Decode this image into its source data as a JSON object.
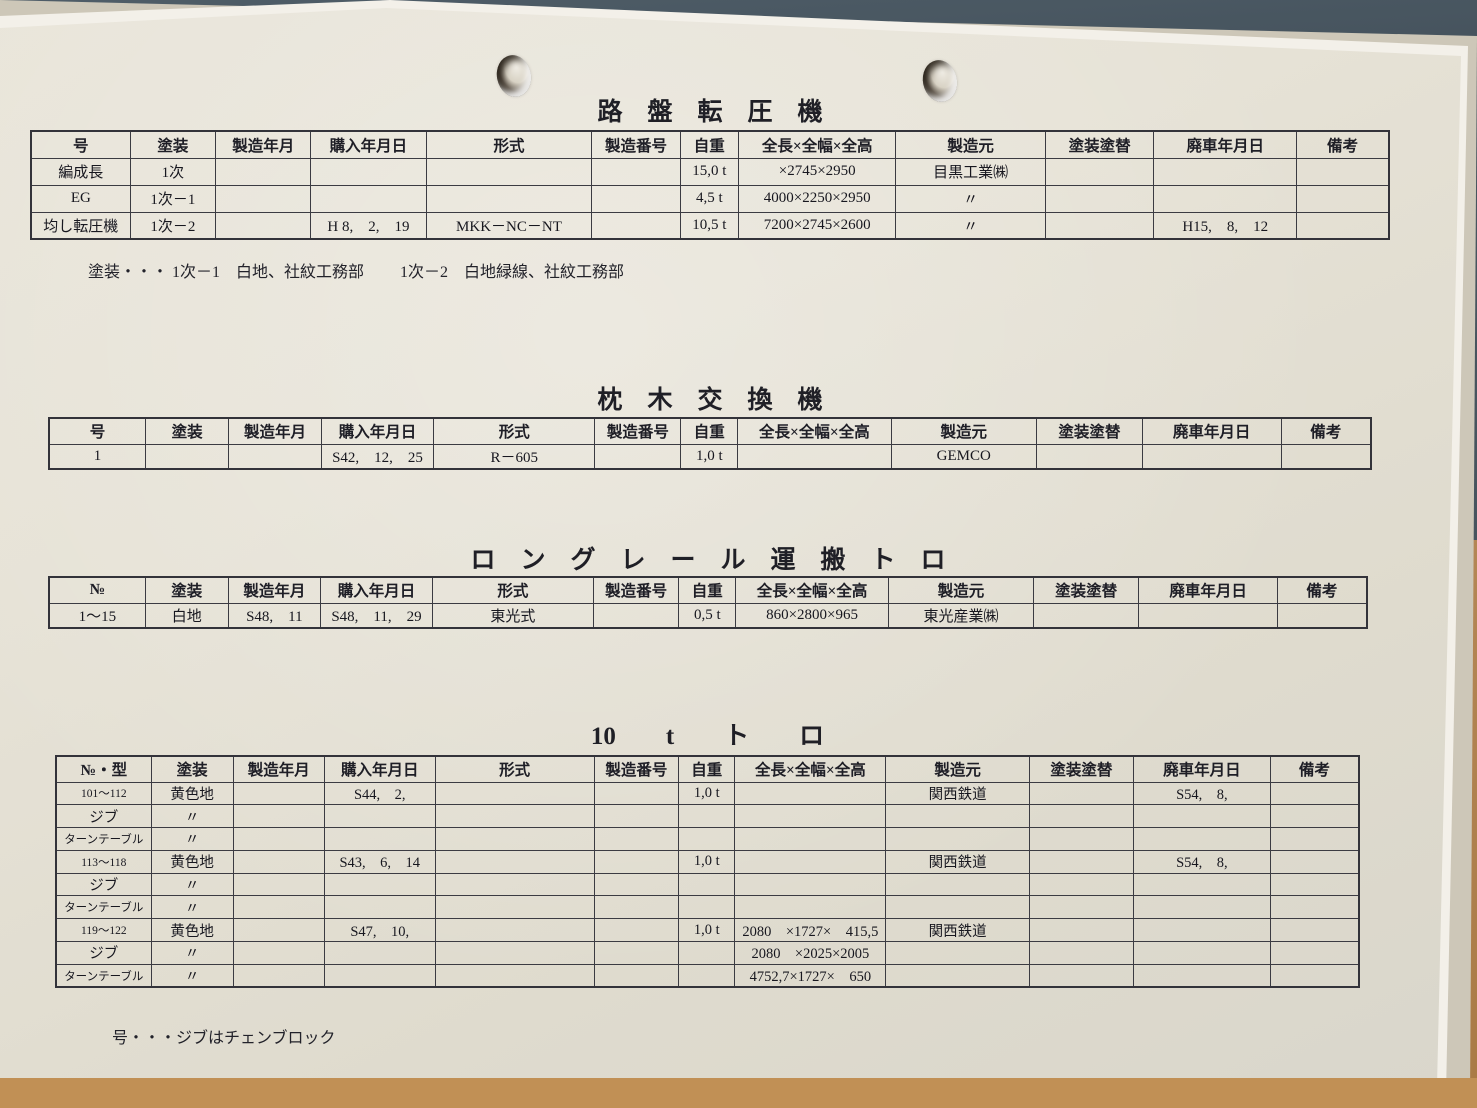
{
  "notes": {
    "paint_note": "塗装・・・ 1次－1　白地、社紋工務部　　 1次－2　白地緑線、社紋工務部",
    "jib_note": "号・・・ジブはチェンブロック"
  },
  "tables": [
    {
      "title": "路　盤　転　圧　機",
      "headers": [
        "号",
        "塗装",
        "製造年月",
        "購入年月日",
        "形式",
        "製造番号",
        "自重",
        "全長×全幅×全高",
        "製造元",
        "塗装塗替",
        "廃車年月日",
        "備考"
      ],
      "rows": [
        [
          "編成長",
          "1次",
          "",
          "",
          "",
          "",
          "15,0 t",
          "×2745×2950",
          "目黒工業㈱",
          "",
          "",
          ""
        ],
        [
          "EG",
          "1次－1",
          "",
          "",
          "",
          "",
          "4,5 t",
          "4000×2250×2950",
          "〃",
          "",
          "",
          ""
        ],
        [
          "均し転圧機",
          "1次－2",
          "",
          "H 8,　2,　19",
          "MKK－NC－NT",
          "",
          "10,5 t",
          "7200×2745×2600",
          "〃",
          "",
          "H15,　8,　12",
          ""
        ]
      ]
    },
    {
      "title": "枕　木　交　換　機",
      "headers": [
        "号",
        "塗装",
        "製造年月",
        "購入年月日",
        "形式",
        "製造番号",
        "自重",
        "全長×全幅×全高",
        "製造元",
        "塗装塗替",
        "廃車年月日",
        "備考"
      ],
      "rows": [
        [
          "1",
          "",
          "",
          "S42,　12,　25",
          "R－605",
          "",
          "1,0 t",
          "",
          "GEMCO",
          "",
          "",
          ""
        ]
      ]
    },
    {
      "title": "ロ　ン　グ　レ　ー　ル　運　搬　ト　ロ",
      "headers": [
        "№",
        "塗装",
        "製造年月",
        "購入年月日",
        "形式",
        "製造番号",
        "自重",
        "全長×全幅×全高",
        "製造元",
        "塗装塗替",
        "廃車年月日",
        "備考"
      ],
      "rows": [
        [
          "1〜15",
          "白地",
          "S48,　11",
          "S48,　11,　29",
          "東光式",
          "",
          "0,5 t",
          "860×2800×965",
          "東光産業㈱",
          "",
          "",
          ""
        ]
      ]
    },
    {
      "title": "10　　t　　ト　　ロ",
      "headers": [
        "№・型",
        "塗装",
        "製造年月",
        "購入年月日",
        "形式",
        "製造番号",
        "自重",
        "全長×全幅×全高",
        "製造元",
        "塗装塗替",
        "廃車年月日",
        "備考"
      ],
      "rows": [
        [
          "101〜112",
          "黄色地",
          "",
          "S44,　2,",
          "",
          "",
          "1,0 t",
          "",
          "関西鉄道",
          "",
          "S54,　8,",
          ""
        ],
        [
          "ジブ",
          "〃",
          "",
          "",
          "",
          "",
          "",
          "",
          "",
          "",
          "",
          ""
        ],
        [
          "ターンテーブル",
          "〃",
          "",
          "",
          "",
          "",
          "",
          "",
          "",
          "",
          "",
          ""
        ],
        [
          "113〜118",
          "黄色地",
          "",
          "S43,　6,　14",
          "",
          "",
          "1,0 t",
          "",
          "関西鉄道",
          "",
          "S54,　8,",
          ""
        ],
        [
          "ジブ",
          "〃",
          "",
          "",
          "",
          "",
          "",
          "",
          "",
          "",
          "",
          ""
        ],
        [
          "ターンテーブル",
          "〃",
          "",
          "",
          "",
          "",
          "",
          "",
          "",
          "",
          "",
          ""
        ],
        [
          "119〜122",
          "黄色地",
          "",
          "S47,　10,",
          "",
          "",
          "1,0 t",
          "2080　×1727×　415,5",
          "関西鉄道",
          "",
          "",
          ""
        ],
        [
          "ジブ",
          "〃",
          "",
          "",
          "",
          "",
          "",
          "2080　×2025×2005",
          "",
          "",
          "",
          ""
        ],
        [
          "ターンテーブル",
          "〃",
          "",
          "",
          "",
          "",
          "",
          "4752,7×1727×　650",
          "",
          "",
          "",
          ""
        ]
      ]
    }
  ]
}
